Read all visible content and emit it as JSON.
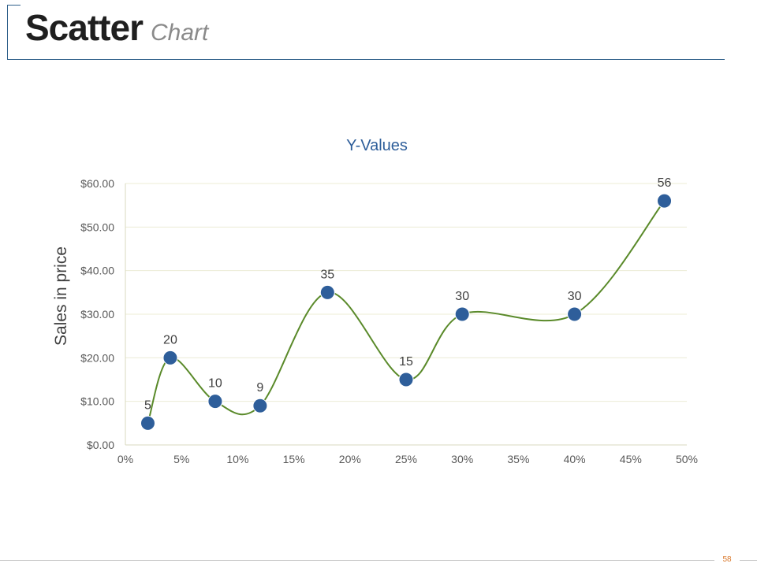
{
  "slide": {
    "title_main": "Scatter",
    "title_sub": "Chart",
    "page_number": "58"
  },
  "chart_data": {
    "type": "scatter",
    "title": "Y-Values",
    "xlabel": "",
    "ylabel": "Sales in price",
    "xlim": [
      0,
      0.5
    ],
    "ylim": [
      0,
      60
    ],
    "x_ticks": [
      0,
      0.05,
      0.1,
      0.15,
      0.2,
      0.25,
      0.3,
      0.35,
      0.4,
      0.45,
      0.5
    ],
    "x_tick_labels": [
      "0%",
      "5%",
      "10%",
      "15%",
      "20%",
      "25%",
      "30%",
      "35%",
      "40%",
      "45%",
      "50%"
    ],
    "y_ticks": [
      0,
      10,
      20,
      30,
      40,
      50,
      60
    ],
    "y_tick_labels": [
      "$0.00",
      "$10.00",
      "$20.00",
      "$30.00",
      "$40.00",
      "$50.00",
      "$60.00"
    ],
    "grid": true,
    "smooth_line": true,
    "series": [
      {
        "name": "Y-Values",
        "x": [
          0.02,
          0.04,
          0.08,
          0.12,
          0.18,
          0.25,
          0.3,
          0.4,
          0.48
        ],
        "y": [
          5,
          20,
          10,
          9,
          35,
          15,
          30,
          30,
          56
        ],
        "labels": [
          "5",
          "20",
          "10",
          "9",
          "35",
          "15",
          "30",
          "30",
          "56"
        ],
        "marker_color": "#2e5e9a",
        "line_color": "#5a8a2a"
      }
    ],
    "title_color": "#2e5e9a",
    "axis_color": "#d9d9bf",
    "tick_color": "#595959"
  }
}
